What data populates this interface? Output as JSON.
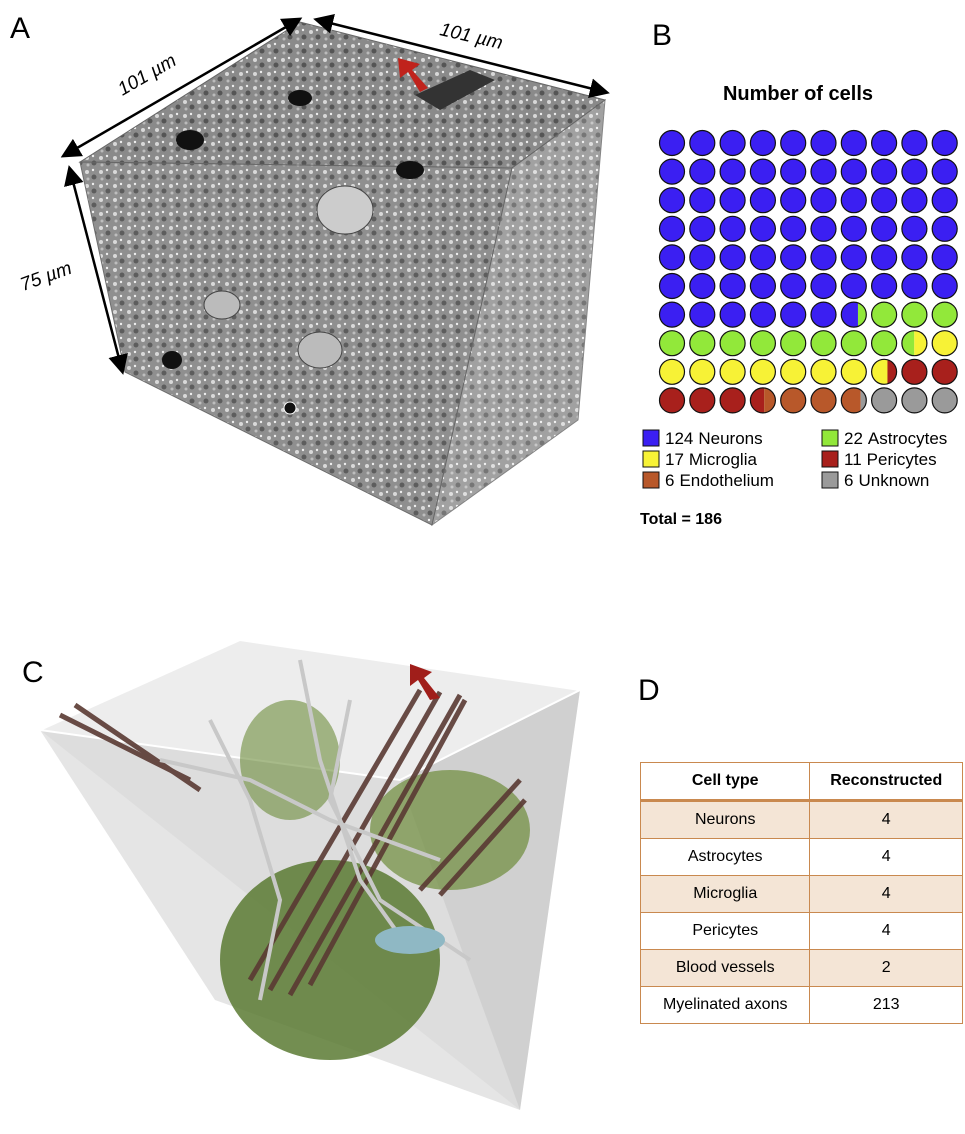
{
  "panel_a": {
    "label": "A",
    "top_left_dimension": "101 µm",
    "top_right_dimension": "101 µm",
    "height_dimension": "75 µm"
  },
  "chart_data": {
    "type": "waffle",
    "label": "B",
    "title": "Number of cells",
    "series": [
      {
        "name": "Neurons",
        "color": "#3b1ff2",
        "value": 124
      },
      {
        "name": "Astrocytes",
        "color": "#92e83a",
        "value": 22
      },
      {
        "name": "Microglia",
        "color": "#f7f236",
        "value": 17
      },
      {
        "name": "Pericytes",
        "color": "#a8201c",
        "value": 11
      },
      {
        "name": "Endothelium",
        "color": "#b8582a",
        "value": 6
      },
      {
        "name": "Unknown",
        "color": "#9a9a9a",
        "value": 6
      }
    ],
    "total_label": "Total =",
    "total": 186
  },
  "panel_c": {
    "label": "C"
  },
  "panel_d": {
    "label": "D",
    "table": {
      "header": [
        "Cell type",
        "Reconstructed"
      ],
      "rows": [
        [
          "Neurons",
          4
        ],
        [
          "Astrocytes",
          4
        ],
        [
          "Microglia",
          4
        ],
        [
          "Pericytes",
          4
        ],
        [
          "Blood vessels",
          2
        ],
        [
          "Myelinated axons",
          213
        ]
      ]
    }
  }
}
